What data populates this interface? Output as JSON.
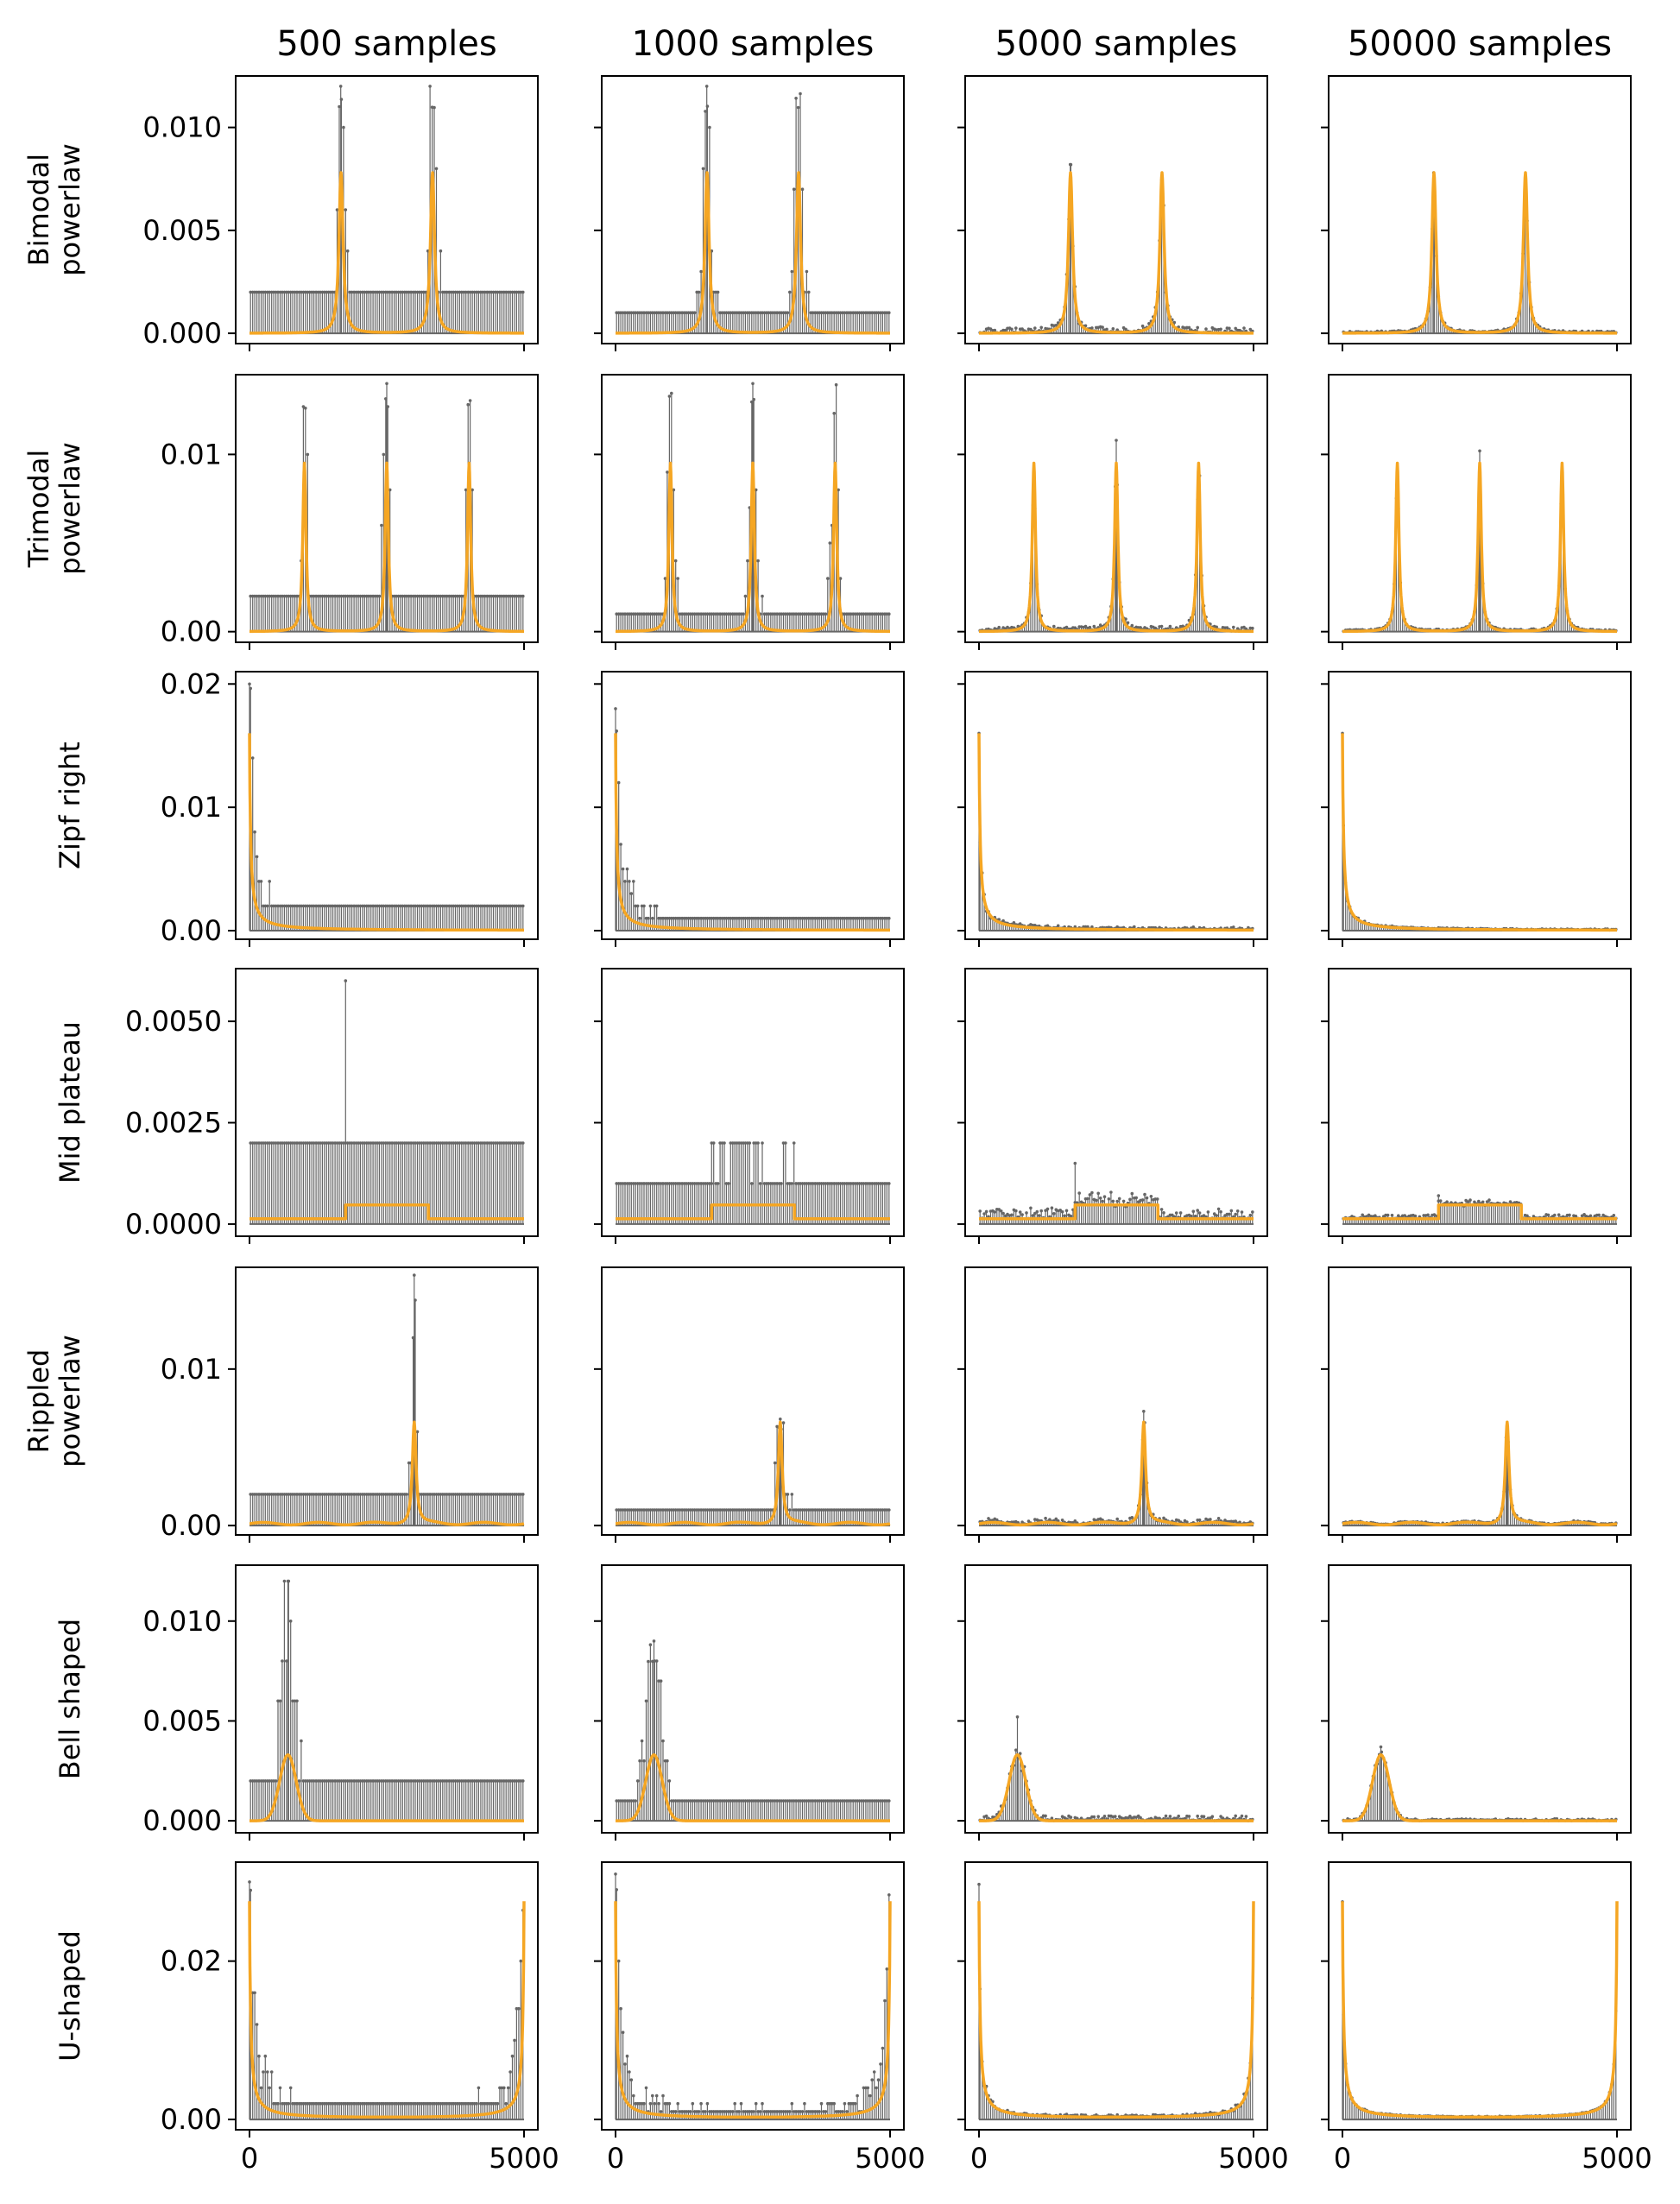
{
  "colors": {
    "stem": "#666666",
    "curve": "#f5a623"
  },
  "chart_data": {
    "type": "grid of stem plots with overlaid density curves",
    "columns": [
      "500 samples",
      "1000 samples",
      "5000 samples",
      "50000 samples"
    ],
    "x_axis": {
      "lim": [
        0,
        5000
      ],
      "ticks": [
        0,
        5000
      ],
      "tick_labels": [
        "0",
        "5000"
      ]
    },
    "sample_sizes": [
      500,
      1000,
      5000,
      50000
    ],
    "rows": [
      {
        "label": [
          "Bimodal",
          "powerlaw"
        ],
        "ylim": [
          -0.0005,
          0.0125
        ],
        "yticks": [
          0.0,
          0.005,
          0.01
        ],
        "ytick_labels": [
          "0.000",
          "0.005",
          "0.010"
        ],
        "shape": {
          "kind": "peaks",
          "centers": [
            1667,
            3333
          ],
          "peak": 0.0078,
          "width": 45
        },
        "observed_max": [
          0.012,
          0.012,
          0.0082,
          0.0078
        ]
      },
      {
        "label": [
          "Trimodal",
          "powerlaw"
        ],
        "ylim": [
          -0.0006,
          0.0145
        ],
        "yticks": [
          0.0,
          0.01
        ],
        "ytick_labels": [
          "0.00",
          "0.01"
        ],
        "shape": {
          "kind": "peaks",
          "centers": [
            1000,
            2500,
            4000
          ],
          "peak": 0.0095,
          "width": 35
        },
        "observed_max": [
          0.014,
          0.014,
          0.0108,
          0.0102
        ]
      },
      {
        "label": [
          "Zipf right"
        ],
        "ylim": [
          -0.0007,
          0.021
        ],
        "yticks": [
          0.0,
          0.01,
          0.02
        ],
        "ytick_labels": [
          "0.00",
          "0.01",
          "0.02"
        ],
        "shape": {
          "kind": "zipf",
          "peak": 0.016,
          "scale": 22
        },
        "observed_max": [
          0.02,
          0.018,
          0.016,
          0.016
        ]
      },
      {
        "label": [
          "Mid plateau"
        ],
        "ylim": [
          -0.0003,
          0.0063
        ],
        "yticks": [
          0.0,
          0.0025,
          0.005
        ],
        "ytick_labels": [
          "0.0000",
          "0.0025",
          "0.0050"
        ],
        "shape": {
          "kind": "plateau",
          "low": 0.00013,
          "high": 0.00047,
          "from": 1750,
          "to": 3250
        },
        "observed_max": [
          0.006,
          0.002,
          0.0015,
          0.0007
        ]
      },
      {
        "label": [
          "Rippled",
          "powerlaw"
        ],
        "ylim": [
          -0.0006,
          0.0165
        ],
        "yticks": [
          0.0,
          0.01
        ],
        "ytick_labels": [
          "0.00",
          "0.01"
        ],
        "shape": {
          "kind": "rippled",
          "center": 3000,
          "peak": 0.0065,
          "width": 40
        },
        "observed_max": [
          0.016,
          0.0068,
          0.0073,
          0.0065
        ]
      },
      {
        "label": [
          "Bell shaped"
        ],
        "ylim": [
          -0.0006,
          0.0128
        ],
        "yticks": [
          0.0,
          0.005,
          0.01
        ],
        "ytick_labels": [
          "0.000",
          "0.005",
          "0.010"
        ],
        "shape": {
          "kind": "bell",
          "center": 700,
          "sigma": 150,
          "peak": 0.0033
        },
        "observed_max": [
          0.012,
          0.009,
          0.0052,
          0.0037
        ]
      },
      {
        "label": [
          "U-shaped"
        ],
        "ylim": [
          -0.0013,
          0.0325
        ],
        "yticks": [
          0.0,
          0.02
        ],
        "ytick_labels": [
          "0.00",
          "0.02"
        ],
        "shape": {
          "kind": "ushape",
          "peak": 0.0275,
          "scale": 22
        },
        "observed_max": [
          0.03,
          0.031,
          0.0297,
          0.0275
        ]
      }
    ]
  }
}
